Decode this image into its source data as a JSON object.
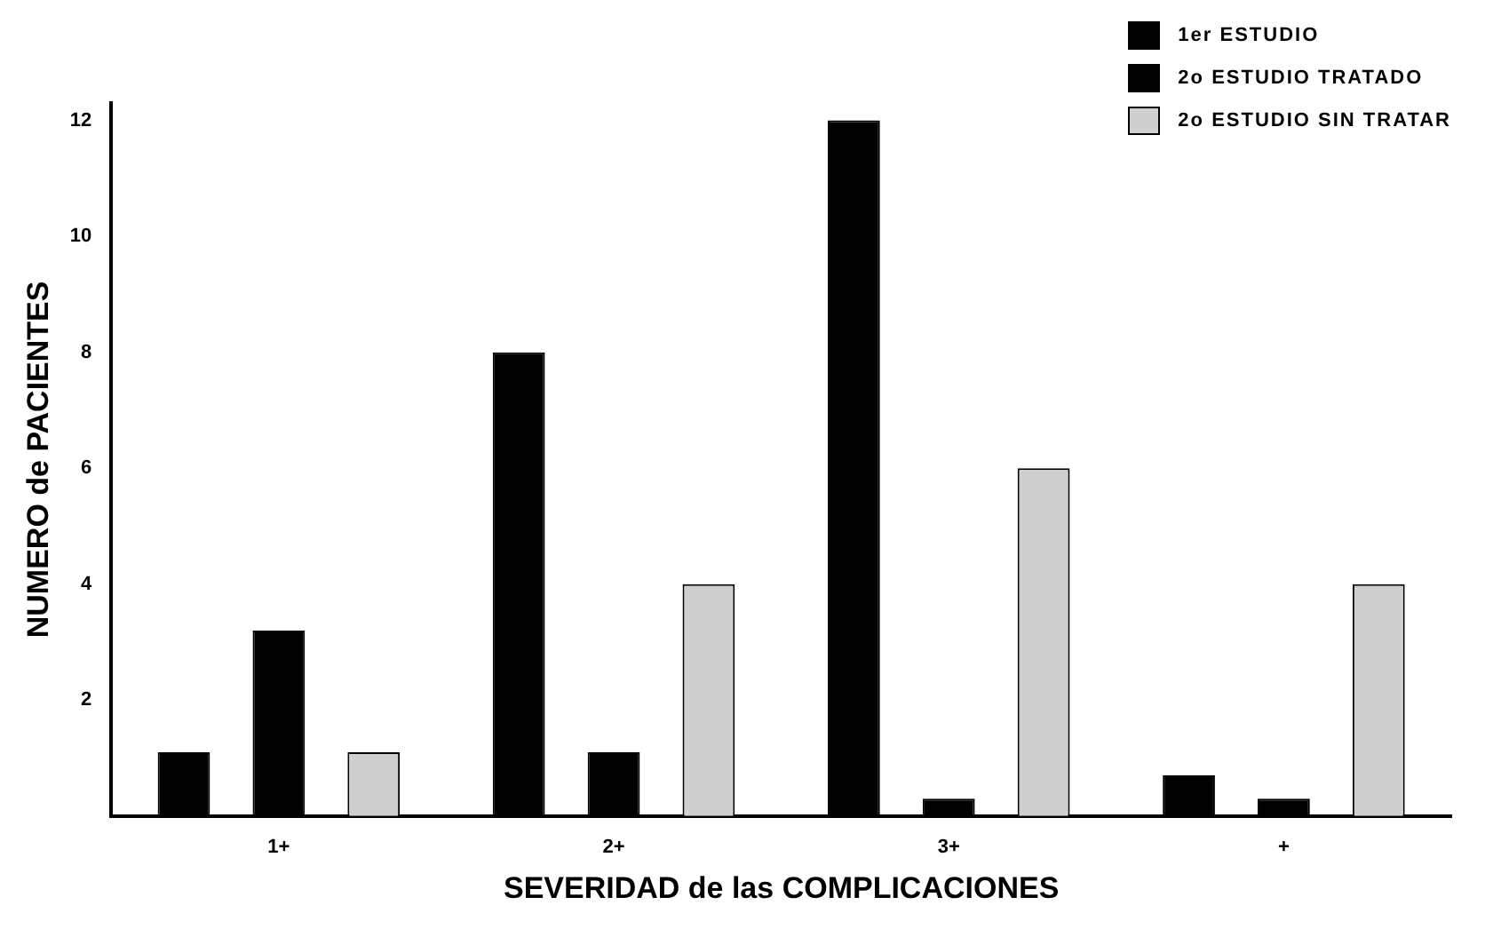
{
  "chart_data": {
    "type": "bar",
    "xlabel": "SEVERIDAD de las COMPLICACIONES",
    "ylabel": "NUMERO de PACIENTES",
    "categories": [
      "1+",
      "2+",
      "3+",
      "+"
    ],
    "series": [
      {
        "name": "1er ESTUDIO",
        "color": "#000000",
        "values": [
          1.1,
          8,
          12,
          0.7
        ]
      },
      {
        "name": "2o ESTUDIO TRATADO",
        "color": "#000000",
        "values": [
          3.2,
          1.1,
          0.3,
          0.3
        ]
      },
      {
        "name": "2o ESTUDIO SIN TRATAR",
        "color": "#cfcfcf",
        "values": [
          1.1,
          4,
          6,
          4
        ]
      }
    ],
    "ylim": [
      0,
      12.3
    ],
    "yticks": [
      2,
      4,
      6,
      8,
      10,
      12
    ],
    "grid": false,
    "legend": "top right"
  }
}
